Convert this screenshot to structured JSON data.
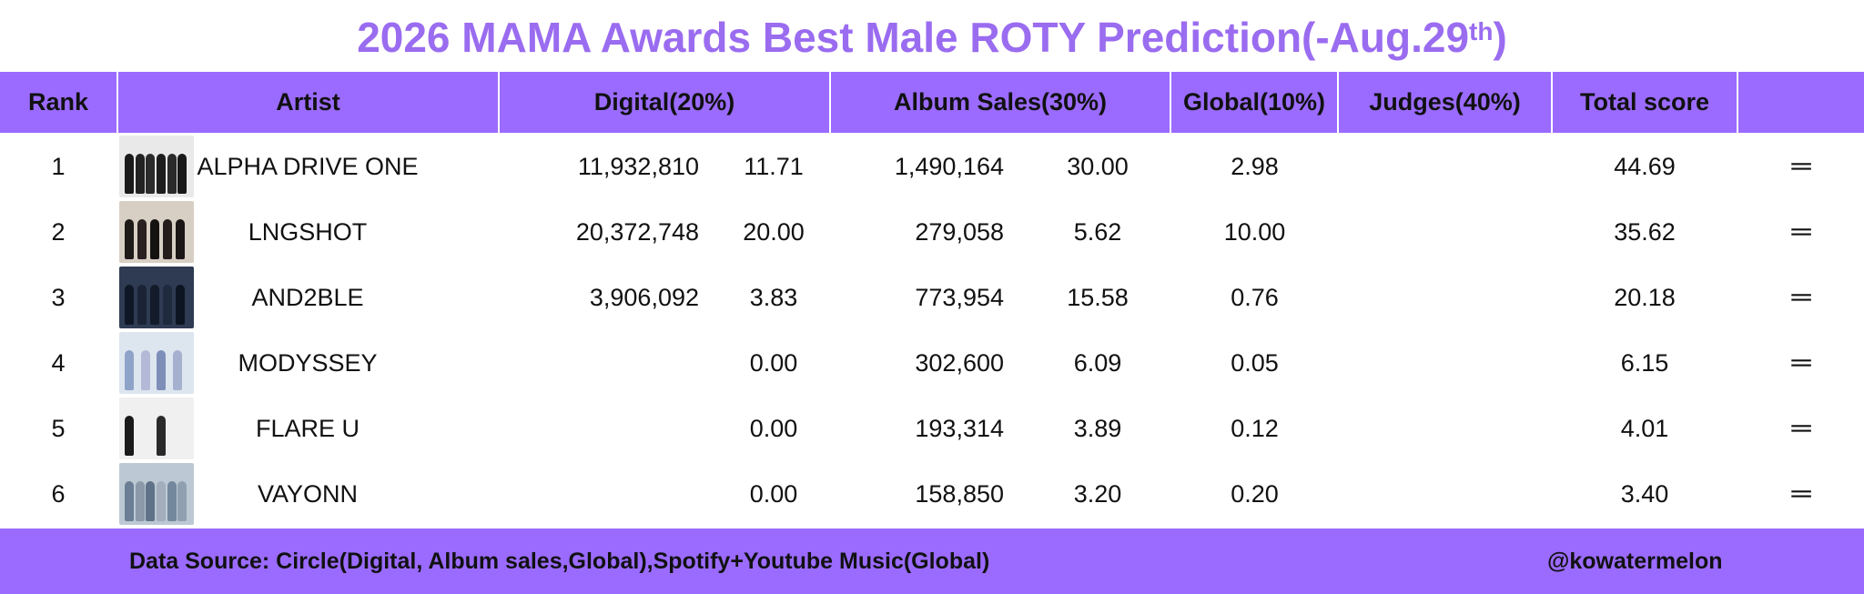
{
  "title": {
    "text": "2026 MAMA Awards Best Male ROTY Prediction(-Aug.29",
    "sup": "th",
    "suffix": ")"
  },
  "chart_data": {
    "type": "table",
    "columns": [
      "Rank",
      "Artist",
      "Digital(20%)",
      "Album Sales(30%)",
      "Global(10%)",
      "Judges(40%)",
      "Total score",
      ""
    ],
    "rows": [
      {
        "rank": "1",
        "artist": "ALPHA DRIVE ONE",
        "digital": "11,932,810",
        "digital_score": "11.71",
        "album": "1,490,164",
        "album_score": "30.00",
        "global": "2.98",
        "judges": "",
        "total": "44.69",
        "change": "═"
      },
      {
        "rank": "2",
        "artist": "LNGSHOT",
        "digital": "20,372,748",
        "digital_score": "20.00",
        "album": "279,058",
        "album_score": "5.62",
        "global": "10.00",
        "judges": "",
        "total": "35.62",
        "change": "═"
      },
      {
        "rank": "3",
        "artist": "AND2BLE",
        "digital": "3,906,092",
        "digital_score": "3.83",
        "album": "773,954",
        "album_score": "15.58",
        "global": "0.76",
        "judges": "",
        "total": "20.18",
        "change": "═"
      },
      {
        "rank": "4",
        "artist": "MODYSSEY",
        "digital": "",
        "digital_score": "0.00",
        "album": "302,600",
        "album_score": "6.09",
        "global": "0.05",
        "judges": "",
        "total": "6.15",
        "change": "═"
      },
      {
        "rank": "5",
        "artist": "FLARE U",
        "digital": "",
        "digital_score": "0.00",
        "album": "193,314",
        "album_score": "3.89",
        "global": "0.12",
        "judges": "",
        "total": "4.01",
        "change": "═"
      },
      {
        "rank": "6",
        "artist": "VAYONN",
        "digital": "",
        "digital_score": "0.00",
        "album": "158,850",
        "album_score": "3.20",
        "global": "0.20",
        "judges": "",
        "total": "3.40",
        "change": "═"
      }
    ]
  },
  "footer": {
    "source": "Data Source: Circle(Digital, Album sales,Global),Spotify+Youtube Music(Global)",
    "handle": "@kowatermelon"
  },
  "colors": {
    "title": "#9a6cf0",
    "header_bg": "#9b6bff",
    "footer_bg": "#9b6bff"
  },
  "thumbs": [
    {
      "bg": "#e9e9e9",
      "people": [
        "#1a1a1a",
        "#222",
        "#2b2b2b",
        "#1d1d1d",
        "#2a2a2a",
        "#181818"
      ]
    },
    {
      "bg": "#d8cfc4",
      "people": [
        "#1e1a18",
        "#2a2220",
        "#151212",
        "#241d1b",
        "#1a1616"
      ]
    },
    {
      "bg": "#2e3b52",
      "people": [
        "#0f1726",
        "#1b2436",
        "#131b2b",
        "#202a3e",
        "#0e1522"
      ]
    },
    {
      "bg": "#dde6ef",
      "people": [
        "#8fa3c8",
        "#b3b9d6",
        "#7d8fb8",
        "#a6b0cf"
      ]
    },
    {
      "bg": "#f0f0f0",
      "people": [
        "#1a1a1a",
        "#2a2a2a"
      ]
    },
    {
      "bg": "#bcc9d4",
      "people": [
        "#6a7f95",
        "#8b99a8",
        "#5f7288",
        "#a2aebb",
        "#74889d",
        "#90a0b1"
      ]
    }
  ]
}
